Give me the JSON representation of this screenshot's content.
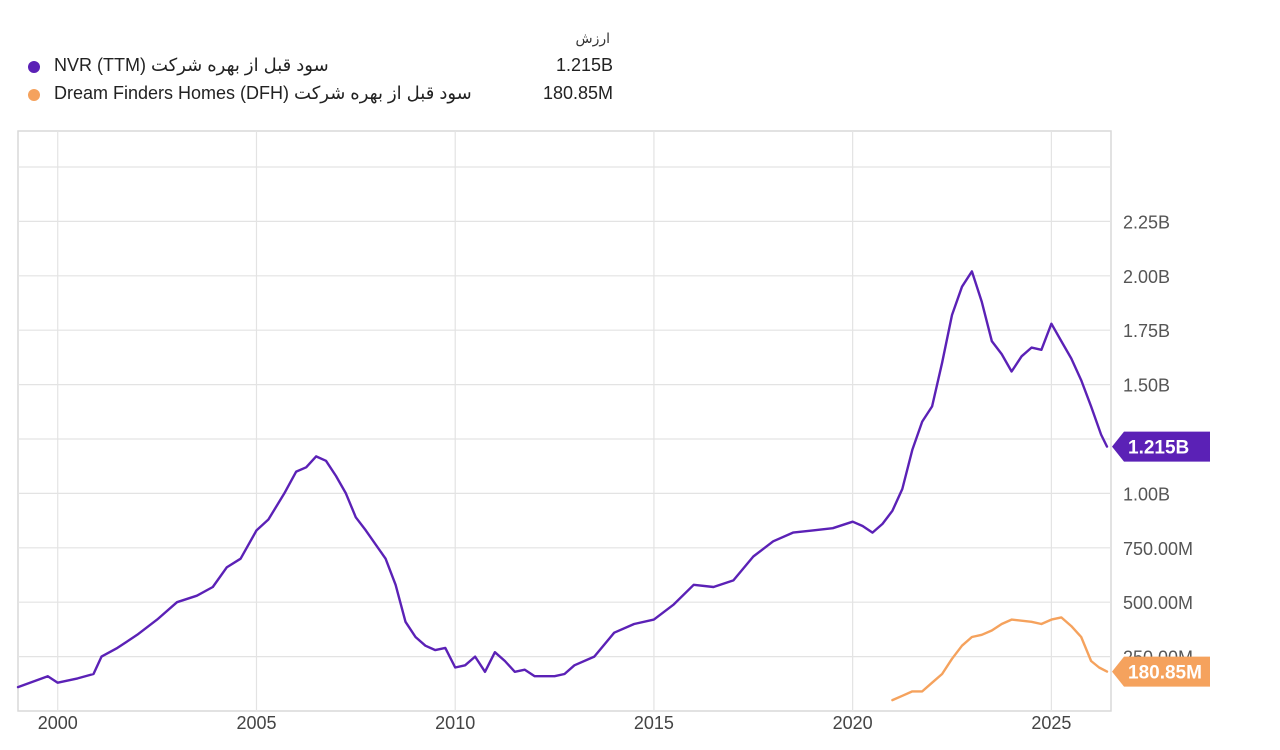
{
  "legend": {
    "header": "ارزش",
    "items": [
      {
        "name": "NVR (TTM) سود قبل از بهره شرکت",
        "value": "1.215B",
        "color": "#5b21b6"
      },
      {
        "name": "Dream Finders Homes (DFH) سود قبل از بهره شرکت",
        "value": "180.85M",
        "color": "#f5a25d"
      }
    ]
  },
  "chart_data": {
    "type": "line",
    "xlim": [
      1999.0,
      2026.5
    ],
    "ylim": [
      0,
      2.5
    ],
    "y_unit": "B",
    "grid": true,
    "y_axis_side": "right",
    "x_ticks": [
      {
        "value": 2000,
        "label": "2000"
      },
      {
        "value": 2005,
        "label": "2005"
      },
      {
        "value": 2010,
        "label": "2010"
      },
      {
        "value": 2015,
        "label": "2015"
      },
      {
        "value": 2020,
        "label": "2020"
      },
      {
        "value": 2025,
        "label": "2025"
      }
    ],
    "y_ticks": [
      {
        "value": 0.25,
        "label": "250.00M"
      },
      {
        "value": 0.5,
        "label": "500.00M"
      },
      {
        "value": 0.75,
        "label": "750.00M"
      },
      {
        "value": 1.0,
        "label": "1.00B"
      },
      {
        "value": 1.25,
        "label": "1.25B"
      },
      {
        "value": 1.5,
        "label": "1.50B"
      },
      {
        "value": 1.75,
        "label": "1.75B"
      },
      {
        "value": 2.0,
        "label": "2.00B"
      },
      {
        "value": 2.25,
        "label": "2.25B"
      }
    ],
    "series": [
      {
        "name": "NVR (TTM) سود قبل از بهره شرکت",
        "color": "#5b21b6",
        "end_label": "1.215B",
        "points": [
          [
            1999.0,
            0.11
          ],
          [
            1999.75,
            0.16
          ],
          [
            2000.0,
            0.13
          ],
          [
            2000.5,
            0.15
          ],
          [
            2000.9,
            0.17
          ],
          [
            2001.1,
            0.25
          ],
          [
            2001.5,
            0.29
          ],
          [
            2002.0,
            0.35
          ],
          [
            2002.5,
            0.42
          ],
          [
            2003.0,
            0.5
          ],
          [
            2003.5,
            0.53
          ],
          [
            2003.9,
            0.57
          ],
          [
            2004.25,
            0.66
          ],
          [
            2004.6,
            0.7
          ],
          [
            2005.0,
            0.83
          ],
          [
            2005.3,
            0.88
          ],
          [
            2005.7,
            1.0
          ],
          [
            2006.0,
            1.1
          ],
          [
            2006.25,
            1.12
          ],
          [
            2006.5,
            1.17
          ],
          [
            2006.75,
            1.15
          ],
          [
            2007.0,
            1.08
          ],
          [
            2007.25,
            1.0
          ],
          [
            2007.5,
            0.89
          ],
          [
            2007.75,
            0.83
          ],
          [
            2008.25,
            0.7
          ],
          [
            2008.5,
            0.58
          ],
          [
            2008.75,
            0.41
          ],
          [
            2009.0,
            0.34
          ],
          [
            2009.25,
            0.3
          ],
          [
            2009.5,
            0.28
          ],
          [
            2009.75,
            0.29
          ],
          [
            2010.0,
            0.2
          ],
          [
            2010.25,
            0.21
          ],
          [
            2010.5,
            0.25
          ],
          [
            2010.75,
            0.18
          ],
          [
            2011.0,
            0.27
          ],
          [
            2011.25,
            0.23
          ],
          [
            2011.5,
            0.18
          ],
          [
            2011.75,
            0.19
          ],
          [
            2012.0,
            0.16
          ],
          [
            2012.5,
            0.16
          ],
          [
            2012.75,
            0.17
          ],
          [
            2013.0,
            0.21
          ],
          [
            2013.5,
            0.25
          ],
          [
            2014.0,
            0.36
          ],
          [
            2014.5,
            0.4
          ],
          [
            2015.0,
            0.42
          ],
          [
            2015.5,
            0.49
          ],
          [
            2016.0,
            0.58
          ],
          [
            2016.5,
            0.57
          ],
          [
            2017.0,
            0.6
          ],
          [
            2017.5,
            0.71
          ],
          [
            2018.0,
            0.78
          ],
          [
            2018.5,
            0.82
          ],
          [
            2019.0,
            0.83
          ],
          [
            2019.5,
            0.84
          ],
          [
            2020.0,
            0.87
          ],
          [
            2020.25,
            0.85
          ],
          [
            2020.5,
            0.82
          ],
          [
            2020.75,
            0.86
          ],
          [
            2021.0,
            0.92
          ],
          [
            2021.25,
            1.02
          ],
          [
            2021.5,
            1.2
          ],
          [
            2021.75,
            1.33
          ],
          [
            2022.0,
            1.4
          ],
          [
            2022.25,
            1.6
          ],
          [
            2022.5,
            1.82
          ],
          [
            2022.75,
            1.95
          ],
          [
            2023.0,
            2.02
          ],
          [
            2023.25,
            1.88
          ],
          [
            2023.5,
            1.7
          ],
          [
            2023.75,
            1.64
          ],
          [
            2024.0,
            1.56
          ],
          [
            2024.25,
            1.63
          ],
          [
            2024.5,
            1.67
          ],
          [
            2024.75,
            1.66
          ],
          [
            2025.0,
            1.78
          ],
          [
            2025.25,
            1.7
          ],
          [
            2025.5,
            1.62
          ],
          [
            2025.75,
            1.52
          ],
          [
            2026.0,
            1.4
          ],
          [
            2026.25,
            1.27
          ],
          [
            2026.4,
            1.215
          ]
        ]
      },
      {
        "name": "Dream Finders Homes (DFH) سود قبل از بهره شرکت",
        "color": "#f5a25d",
        "end_label": "180.85M",
        "points": [
          [
            2021.0,
            0.05
          ],
          [
            2021.25,
            0.07
          ],
          [
            2021.5,
            0.09
          ],
          [
            2021.75,
            0.09
          ],
          [
            2022.0,
            0.13
          ],
          [
            2022.25,
            0.17
          ],
          [
            2022.5,
            0.24
          ],
          [
            2022.75,
            0.3
          ],
          [
            2023.0,
            0.34
          ],
          [
            2023.25,
            0.35
          ],
          [
            2023.5,
            0.37
          ],
          [
            2023.75,
            0.4
          ],
          [
            2024.0,
            0.42
          ],
          [
            2024.5,
            0.41
          ],
          [
            2024.75,
            0.4
          ],
          [
            2025.0,
            0.42
          ],
          [
            2025.25,
            0.43
          ],
          [
            2025.5,
            0.39
          ],
          [
            2025.75,
            0.34
          ],
          [
            2026.0,
            0.23
          ],
          [
            2026.2,
            0.2
          ],
          [
            2026.4,
            0.181
          ]
        ]
      }
    ]
  }
}
